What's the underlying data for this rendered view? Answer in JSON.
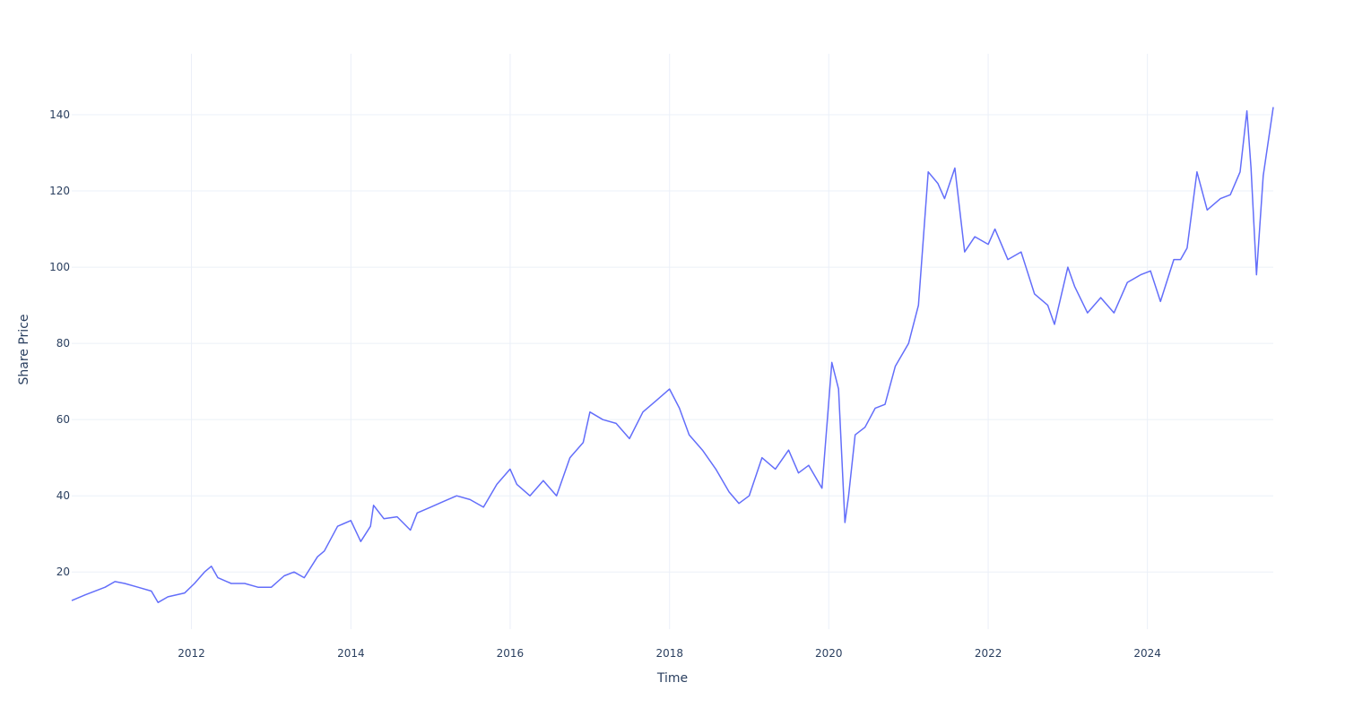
{
  "chart_data": {
    "type": "line",
    "title": "",
    "xlabel": "Time",
    "ylabel": "Share Price",
    "x_range": [
      "2010-07-01",
      "2025-07-31"
    ],
    "ylim": [
      5,
      156
    ],
    "x_ticks": [
      {
        "value": "2012-01-01",
        "label": "2012"
      },
      {
        "value": "2014-01-01",
        "label": "2014"
      },
      {
        "value": "2016-01-01",
        "label": "2016"
      },
      {
        "value": "2018-01-01",
        "label": "2018"
      },
      {
        "value": "2020-01-01",
        "label": "2020"
      },
      {
        "value": "2022-01-01",
        "label": "2022"
      },
      {
        "value": "2024-01-01",
        "label": "2024"
      }
    ],
    "y_ticks": [
      20,
      40,
      60,
      80,
      100,
      120,
      140
    ],
    "grid": true,
    "line_color": "#636efa",
    "series": [
      {
        "x": [
          "2010-07-01",
          "2010-09-01",
          "2010-12-01",
          "2011-01-15",
          "2011-03-01",
          "2011-05-01",
          "2011-07-01",
          "2011-08-01",
          "2011-09-15",
          "2011-12-01",
          "2012-01-15",
          "2012-03-01",
          "2012-04-01",
          "2012-05-01",
          "2012-07-01",
          "2012-09-01",
          "2012-11-01",
          "2013-01-01",
          "2013-03-01",
          "2013-04-15",
          "2013-06-01",
          "2013-08-01",
          "2013-09-01",
          "2013-11-01",
          "2014-01-01",
          "2014-02-15",
          "2014-04-01",
          "2014-04-15",
          "2014-06-01",
          "2014-08-01",
          "2014-10-01",
          "2014-11-01",
          "2015-01-01",
          "2015-03-01",
          "2015-05-01",
          "2015-07-01",
          "2015-09-01",
          "2015-11-01",
          "2016-01-01",
          "2016-02-01",
          "2016-04-01",
          "2016-06-01",
          "2016-08-01",
          "2016-10-01",
          "2016-12-01",
          "2017-01-01",
          "2017-03-01",
          "2017-05-01",
          "2017-07-01",
          "2017-09-01",
          "2017-11-01",
          "2018-01-01",
          "2018-02-15",
          "2018-04-01",
          "2018-06-01",
          "2018-08-01",
          "2018-10-01",
          "2018-11-15",
          "2019-01-01",
          "2019-03-01",
          "2019-05-01",
          "2019-07-01",
          "2019-08-15",
          "2019-10-01",
          "2019-12-01",
          "2020-01-15",
          "2020-02-15",
          "2020-03-15",
          "2020-04-01",
          "2020-05-01",
          "2020-06-15",
          "2020-08-01",
          "2020-09-15",
          "2020-11-01",
          "2021-01-01",
          "2021-02-15",
          "2021-04-01",
          "2021-05-15",
          "2021-06-15",
          "2021-08-01",
          "2021-09-15",
          "2021-11-01",
          "2022-01-01",
          "2022-02-01",
          "2022-04-01",
          "2022-06-01",
          "2022-08-01",
          "2022-10-01",
          "2022-11-01",
          "2023-01-01",
          "2023-02-01",
          "2023-04-01",
          "2023-06-01",
          "2023-08-01",
          "2023-10-01",
          "2023-12-01",
          "2024-01-15",
          "2024-03-01",
          "2024-05-01",
          "2024-06-01",
          "2024-07-01",
          "2024-08-15",
          "2024-10-01",
          "2024-12-01",
          "2025-01-15",
          "2025-03-01",
          "2025-04-01",
          "2025-04-20",
          "2025-05-15",
          "2025-06-15",
          "2025-07-31"
        ],
        "y": [
          12.5,
          14,
          16,
          17.5,
          17,
          16,
          15,
          12,
          13.5,
          14.5,
          17,
          20,
          21.5,
          18.5,
          17,
          17,
          16,
          16,
          19,
          20,
          18.5,
          24,
          25.5,
          32,
          33.5,
          28,
          32,
          37.5,
          34,
          34.5,
          31,
          35.5,
          37,
          38.5,
          40,
          39,
          37,
          43,
          47,
          43,
          40,
          44,
          40,
          50,
          54,
          62,
          60,
          59,
          55,
          62,
          65,
          68,
          63,
          56,
          52,
          47,
          41,
          38,
          40,
          50,
          47,
          52,
          46,
          48,
          42,
          75,
          68,
          33,
          40,
          56,
          58,
          63,
          64,
          74,
          80,
          90,
          125,
          122,
          118,
          126,
          104,
          108,
          106,
          110,
          102,
          104,
          93,
          90,
          85,
          100,
          95,
          88,
          92,
          88,
          96,
          98,
          99,
          91,
          102,
          102,
          105,
          125,
          115,
          118,
          119,
          125,
          141,
          126,
          98,
          124,
          142
        ],
        "name": ""
      }
    ]
  }
}
